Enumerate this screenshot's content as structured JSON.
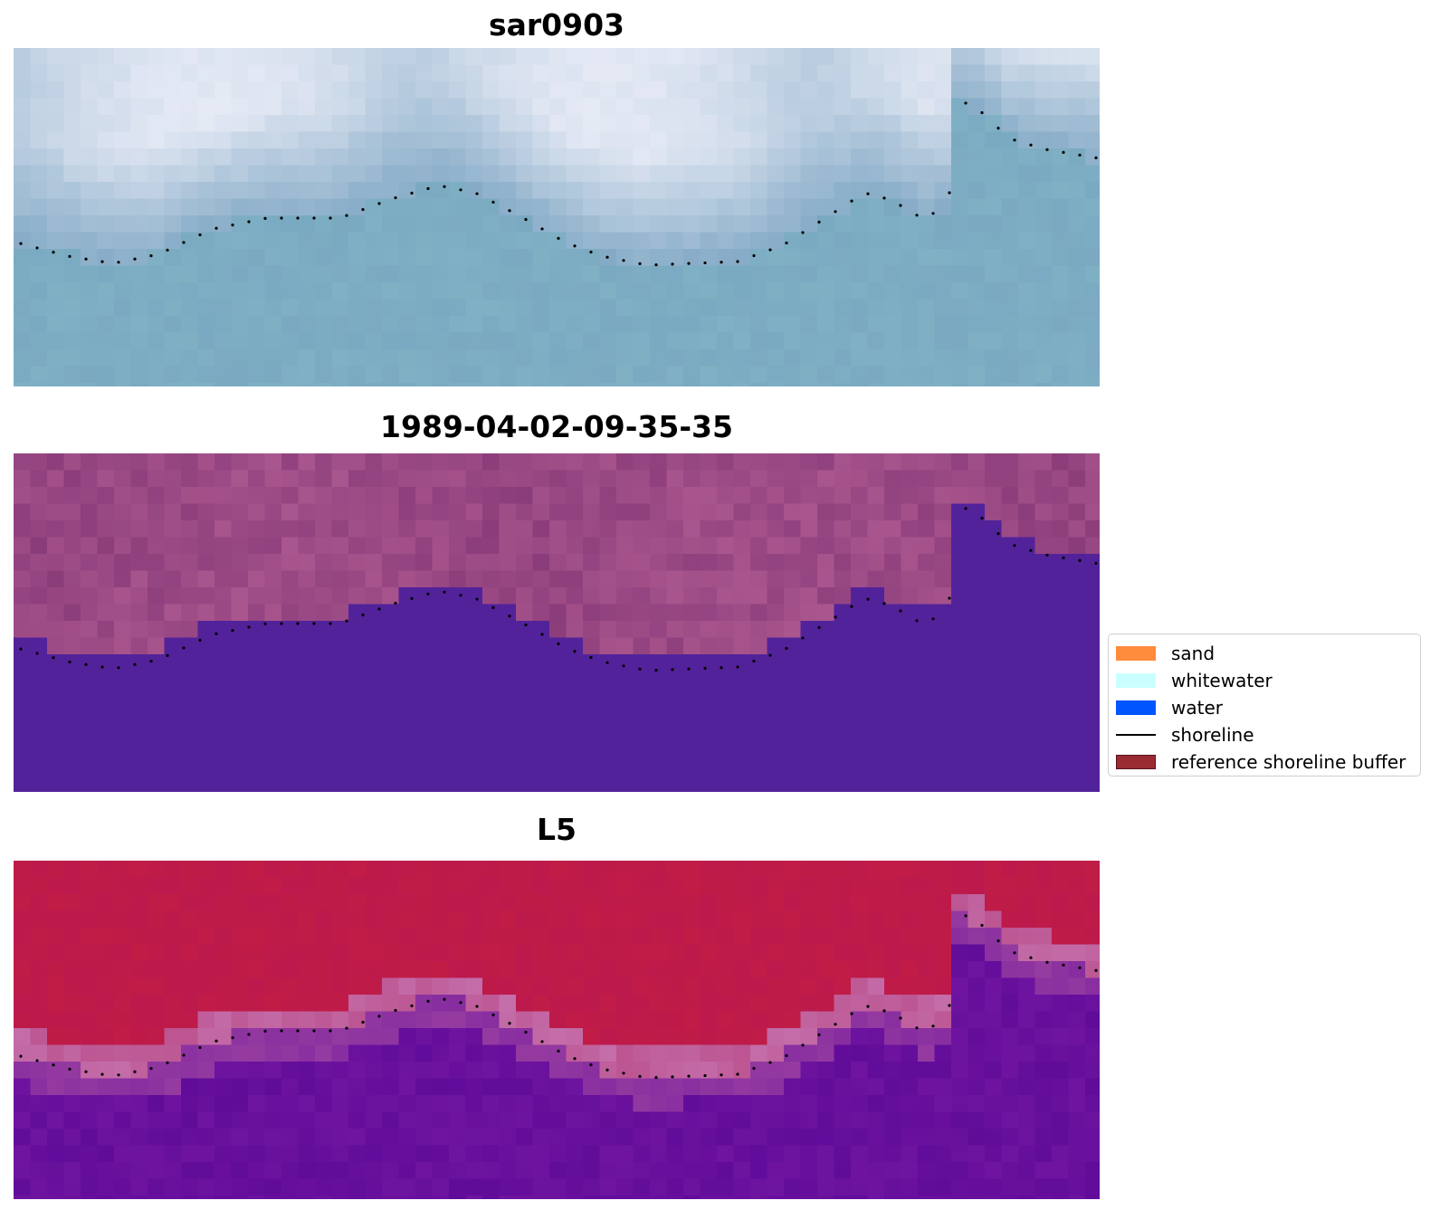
{
  "panels": [
    {
      "title": "sar0903",
      "style": "sar"
    },
    {
      "title": "1989-04-02-09-35-35",
      "style": "classified"
    },
    {
      "title": "L5",
      "style": "index"
    }
  ],
  "legend": [
    {
      "label": "sand",
      "color": "#ff8b3d",
      "kind": "patch"
    },
    {
      "label": "whitewater",
      "color": "#c9ffff",
      "kind": "patch"
    },
    {
      "label": "water",
      "color": "#0055ff",
      "kind": "patch"
    },
    {
      "label": "shoreline",
      "color": "#000000",
      "kind": "line"
    },
    {
      "label": "reference shoreline buffer",
      "color": "#9b2b33",
      "kind": "patch-outlined"
    }
  ],
  "colors": {
    "water_class": "#52229a",
    "land_class": "#9a4a88",
    "index_high": "#c01a48",
    "index_low": "#5a0a98",
    "sar_water": "#7fb0c4",
    "sar_bright": "#eef0fa"
  }
}
